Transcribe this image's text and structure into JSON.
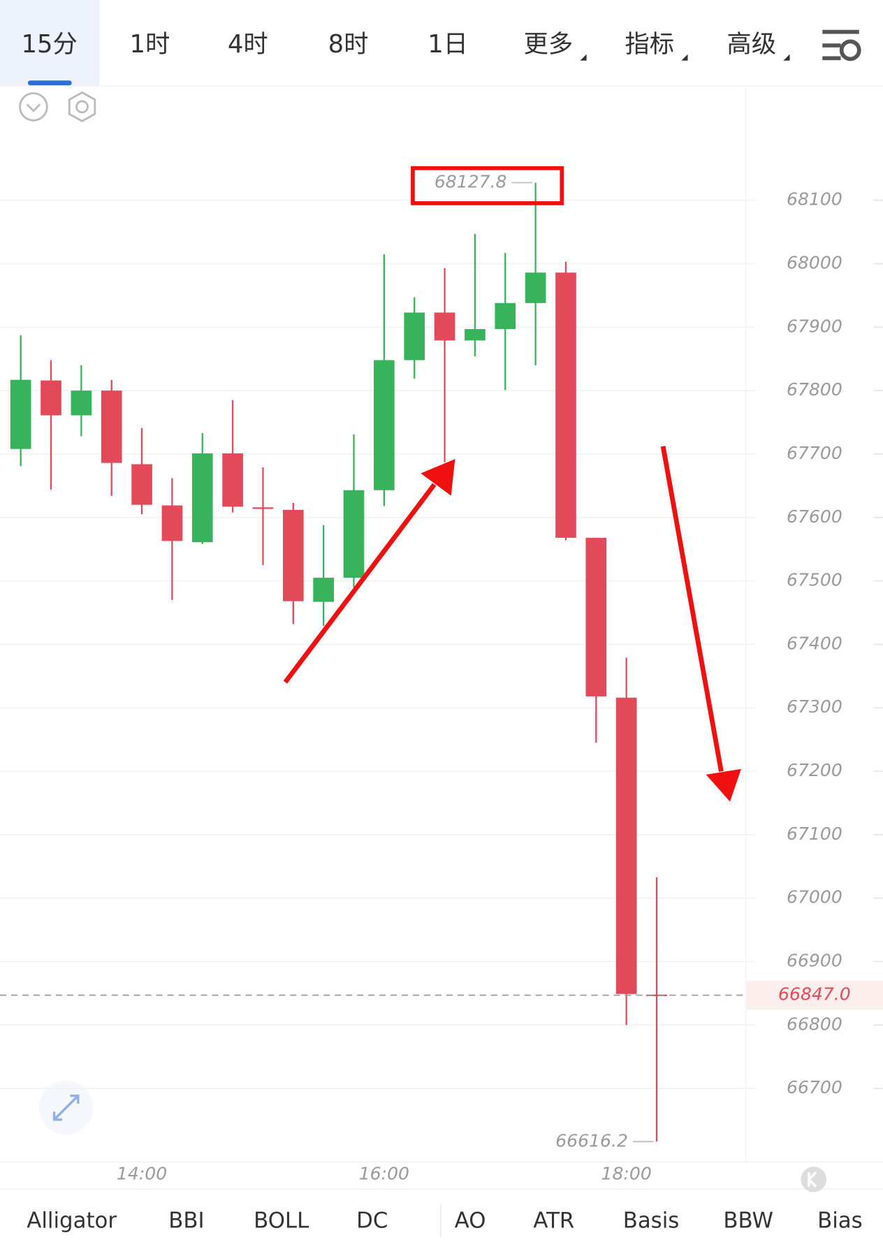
{
  "tabs": [
    "15分",
    "1时",
    "4时",
    "8时",
    "1日",
    "更多",
    "指标",
    "高级"
  ],
  "indicators": [
    "Alligator",
    "BBI",
    "BOLL",
    "DC",
    "AO",
    "ATR",
    "Basis",
    "BBW",
    "Bias"
  ],
  "chart_data": {
    "type": "candlestick",
    "categories": [
      null,
      null,
      null,
      null,
      "14:00",
      null,
      null,
      null,
      null,
      null,
      null,
      null,
      "16:00",
      null,
      null,
      null,
      null,
      null,
      null,
      null,
      "18:00",
      null
    ],
    "open": [
      67708,
      67816,
      67761,
      67800,
      67684,
      67619,
      67561,
      67701,
      67616,
      67612,
      67467,
      67505,
      67643,
      67848,
      67923,
      67879,
      67897,
      67938,
      67986,
      67568,
      67316,
      66848
    ],
    "high": [
      67887,
      67848,
      67840,
      67817,
      67741,
      67662,
      67733,
      67785,
      67679,
      67623,
      67588,
      67731,
      68015,
      67947,
      67993,
      68047,
      68017,
      68127.8,
      68003,
      67568,
      67379,
      67033
    ],
    "low": [
      67681,
      67644,
      67728,
      67634,
      67605,
      67470,
      67558,
      67608,
      67525,
      67432,
      67429,
      67490,
      67618,
      67819,
      67687,
      67854,
      67801,
      67840,
      67564,
      67245,
      66800,
      66616.2
    ],
    "close": [
      67817,
      67761,
      67800,
      67686,
      67620,
      67563,
      67701,
      67617,
      67615,
      67468,
      67505,
      67643,
      67848,
      67923,
      67879,
      67897,
      67938,
      67986,
      67568,
      67318,
      66849,
      66847.0
    ],
    "up_color": "#37b35b",
    "down_color": "#e24a59",
    "ylim": [
      66588,
      68280
    ],
    "yticks": [
      66700,
      66800,
      66900,
      67000,
      67100,
      67200,
      67300,
      67400,
      67500,
      67600,
      67700,
      67800,
      67900,
      68000,
      68100
    ],
    "grid": true,
    "annotations": [
      {
        "value": 68127.8,
        "label": "68127.8"
      },
      {
        "value": 66616.2,
        "label": "66616.2"
      }
    ],
    "last_price": {
      "value": 66847.0,
      "label": "66847.0"
    }
  }
}
